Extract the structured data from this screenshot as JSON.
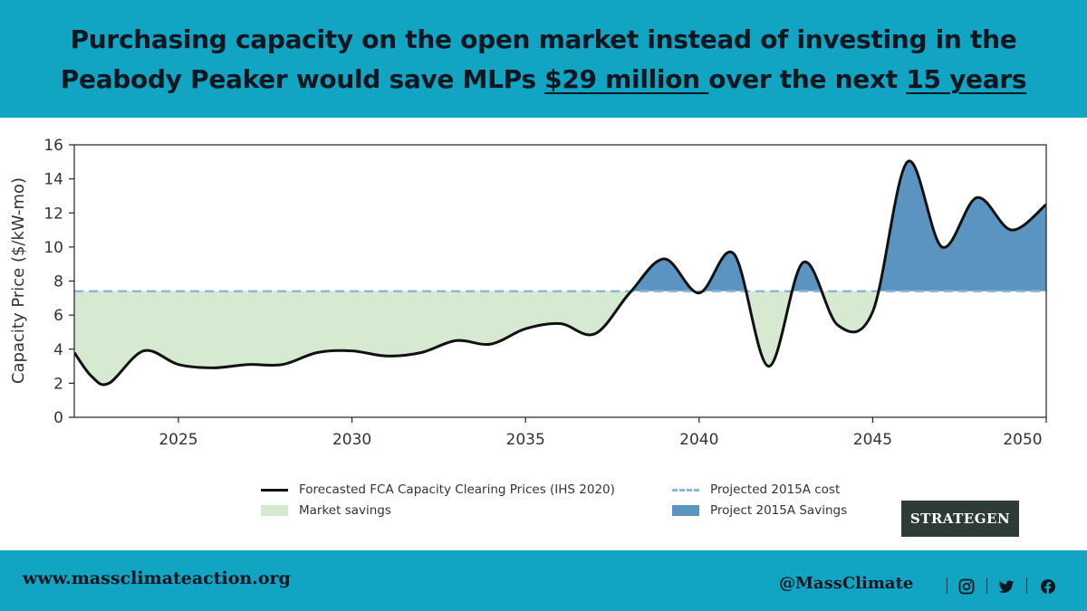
{
  "headline": {
    "line1": "Purchasing capacity on the open market instead of investing in the",
    "line2_pre": "Peabody Peaker would save MLPs ",
    "line2_amount": "$29 million ",
    "line2_mid": "over the next ",
    "line2_years": "15 years"
  },
  "chart_data": {
    "type": "area",
    "ylabel": "Capacity Price ($/kW-mo)",
    "xlabel": "",
    "xlim": [
      2022,
      2050
    ],
    "ylim": [
      0,
      16
    ],
    "x_ticks": [
      2025,
      2030,
      2035,
      2040,
      2045,
      2050
    ],
    "y_ticks": [
      0,
      2,
      4,
      6,
      8,
      10,
      12,
      14,
      16
    ],
    "grid": false,
    "threshold": 7.4,
    "series": [
      {
        "name": "Forecasted FCA Capacity Clearing Prices (IHS 2020)",
        "x": [
          2022,
          2022.5,
          2023,
          2024,
          2025,
          2026,
          2027,
          2028,
          2029,
          2030,
          2031,
          2032,
          2033,
          2034,
          2035,
          2036,
          2037,
          2038,
          2039,
          2040,
          2041,
          2042,
          2043,
          2044,
          2045,
          2046,
          2047,
          2048,
          2049,
          2050
        ],
        "values": [
          3.8,
          2.4,
          2.0,
          3.9,
          3.1,
          2.9,
          3.1,
          3.1,
          3.8,
          3.9,
          3.6,
          3.8,
          4.5,
          4.3,
          5.2,
          5.5,
          4.9,
          7.3,
          9.3,
          7.3,
          9.6,
          3.0,
          9.1,
          5.4,
          6.2,
          15.0,
          10.0,
          12.9,
          11.0,
          12.5
        ]
      },
      {
        "name": "Projected 2015A cost",
        "values": [
          7.4
        ]
      }
    ],
    "legend": {
      "line": "Forecasted FCA Capacity Clearing Prices (IHS 2020)",
      "dash": "Projected 2015A cost",
      "green": "Market savings",
      "blue": "Project 2015A Savings"
    },
    "colors": {
      "line": "#111111",
      "threshold": "#8ab8dc",
      "market_savings": "#d6ead2",
      "project_savings": "#5b94c0"
    }
  },
  "badge": "STRATEGEN",
  "footer": {
    "website": "www.massclimateaction.org",
    "handle": "@MassClimate",
    "icons": [
      "instagram-icon",
      "twitter-icon",
      "facebook-icon"
    ]
  }
}
